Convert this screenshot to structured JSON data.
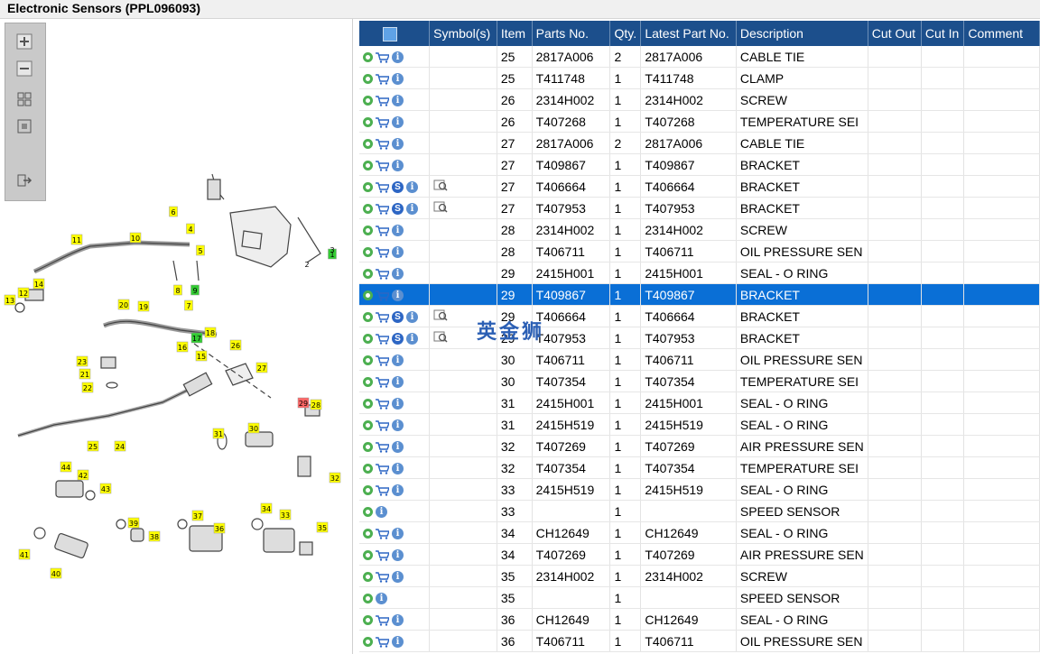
{
  "window": {
    "title": "Electronic Sensors (PPL096093)"
  },
  "watermark": "英金狮",
  "colors": {
    "header": "#1c4f8c",
    "selected_row": "#0a6fd6",
    "callout": "#ffff00",
    "callout_green": "#33cc33",
    "callout_red": "#ff6666"
  },
  "icons": {
    "zoom_in": "zoom-in-icon",
    "zoom_out": "zoom-out-icon",
    "fit": "fit-icon",
    "actual": "actual-size-icon",
    "export": "export-icon"
  },
  "callouts": [
    {
      "n": "1",
      "c": "g"
    },
    {
      "n": "2",
      "c": "n"
    },
    {
      "n": "3",
      "c": "n"
    },
    {
      "n": "4",
      "c": "y"
    },
    {
      "n": "5",
      "c": "y"
    },
    {
      "n": "6",
      "c": "y"
    },
    {
      "n": "7",
      "c": "y"
    },
    {
      "n": "8",
      "c": "y"
    },
    {
      "n": "9",
      "c": "g"
    },
    {
      "n": "10",
      "c": "y"
    },
    {
      "n": "11",
      "c": "y"
    },
    {
      "n": "12",
      "c": "y"
    },
    {
      "n": "13",
      "c": "y"
    },
    {
      "n": "14",
      "c": "y"
    },
    {
      "n": "15",
      "c": "y"
    },
    {
      "n": "16",
      "c": "y"
    },
    {
      "n": "17",
      "c": "g"
    },
    {
      "n": "18",
      "c": "y"
    },
    {
      "n": "19",
      "c": "y"
    },
    {
      "n": "20",
      "c": "y"
    },
    {
      "n": "21",
      "c": "y"
    },
    {
      "n": "22",
      "c": "y"
    },
    {
      "n": "23",
      "c": "y"
    },
    {
      "n": "24",
      "c": "y"
    },
    {
      "n": "25",
      "c": "y"
    },
    {
      "n": "26",
      "c": "y"
    },
    {
      "n": "27",
      "c": "y"
    },
    {
      "n": "28",
      "c": "y"
    },
    {
      "n": "29",
      "c": "r"
    },
    {
      "n": "30",
      "c": "y"
    },
    {
      "n": "31",
      "c": "y"
    },
    {
      "n": "32",
      "c": "y"
    },
    {
      "n": "33",
      "c": "y"
    },
    {
      "n": "34",
      "c": "y"
    },
    {
      "n": "35",
      "c": "y"
    },
    {
      "n": "36",
      "c": "y"
    },
    {
      "n": "37",
      "c": "y"
    },
    {
      "n": "38",
      "c": "y"
    },
    {
      "n": "39",
      "c": "y"
    },
    {
      "n": "40",
      "c": "y"
    },
    {
      "n": "41",
      "c": "y"
    },
    {
      "n": "42",
      "c": "y"
    },
    {
      "n": "43",
      "c": "y"
    },
    {
      "n": "44",
      "c": "y"
    }
  ],
  "grid": {
    "columns": [
      "",
      "Symbol(s)",
      "Item",
      "Parts No.",
      "Qty.",
      "Latest Part No.",
      "Description",
      "Cut Out",
      "Cut In",
      "Comment"
    ],
    "rows": [
      {
        "cart": true,
        "s": false,
        "sym": false,
        "item": "25",
        "part": "2817A006",
        "qty": "2",
        "latest": "2817A006",
        "desc": "CABLE TIE",
        "sel": false
      },
      {
        "cart": true,
        "s": false,
        "sym": false,
        "item": "25",
        "part": "T411748",
        "qty": "1",
        "latest": "T411748",
        "desc": "CLAMP",
        "sel": false
      },
      {
        "cart": true,
        "s": false,
        "sym": false,
        "item": "26",
        "part": "2314H002",
        "qty": "1",
        "latest": "2314H002",
        "desc": "SCREW",
        "sel": false
      },
      {
        "cart": true,
        "s": false,
        "sym": false,
        "item": "26",
        "part": "T407268",
        "qty": "1",
        "latest": "T407268",
        "desc": "TEMPERATURE SEI",
        "sel": false
      },
      {
        "cart": true,
        "s": false,
        "sym": false,
        "item": "27",
        "part": "2817A006",
        "qty": "2",
        "latest": "2817A006",
        "desc": "CABLE TIE",
        "sel": false
      },
      {
        "cart": true,
        "s": false,
        "sym": false,
        "item": "27",
        "part": "T409867",
        "qty": "1",
        "latest": "T409867",
        "desc": "BRACKET",
        "sel": false
      },
      {
        "cart": true,
        "s": true,
        "sym": true,
        "item": "27",
        "part": "T406664",
        "qty": "1",
        "latest": "T406664",
        "desc": "BRACKET",
        "sel": false
      },
      {
        "cart": true,
        "s": true,
        "sym": true,
        "item": "27",
        "part": "T407953",
        "qty": "1",
        "latest": "T407953",
        "desc": "BRACKET",
        "sel": false
      },
      {
        "cart": true,
        "s": false,
        "sym": false,
        "item": "28",
        "part": "2314H002",
        "qty": "1",
        "latest": "2314H002",
        "desc": "SCREW",
        "sel": false
      },
      {
        "cart": true,
        "s": false,
        "sym": false,
        "item": "28",
        "part": "T406711",
        "qty": "1",
        "latest": "T406711",
        "desc": "OIL PRESSURE SEN",
        "sel": false
      },
      {
        "cart": true,
        "s": false,
        "sym": false,
        "item": "29",
        "part": "2415H001",
        "qty": "1",
        "latest": "2415H001",
        "desc": "SEAL - O RING",
        "sel": false
      },
      {
        "cart": true,
        "s": false,
        "sym": false,
        "item": "29",
        "part": "T409867",
        "qty": "1",
        "latest": "T409867",
        "desc": "BRACKET",
        "sel": true
      },
      {
        "cart": true,
        "s": true,
        "sym": true,
        "item": "29",
        "part": "T406664",
        "qty": "1",
        "latest": "T406664",
        "desc": "BRACKET",
        "sel": false
      },
      {
        "cart": true,
        "s": true,
        "sym": true,
        "item": "29",
        "part": "T407953",
        "qty": "1",
        "latest": "T407953",
        "desc": "BRACKET",
        "sel": false
      },
      {
        "cart": true,
        "s": false,
        "sym": false,
        "item": "30",
        "part": "T406711",
        "qty": "1",
        "latest": "T406711",
        "desc": "OIL PRESSURE SEN",
        "sel": false
      },
      {
        "cart": true,
        "s": false,
        "sym": false,
        "item": "30",
        "part": "T407354",
        "qty": "1",
        "latest": "T407354",
        "desc": "TEMPERATURE SEI",
        "sel": false
      },
      {
        "cart": true,
        "s": false,
        "sym": false,
        "item": "31",
        "part": "2415H001",
        "qty": "1",
        "latest": "2415H001",
        "desc": "SEAL - O RING",
        "sel": false
      },
      {
        "cart": true,
        "s": false,
        "sym": false,
        "item": "31",
        "part": "2415H519",
        "qty": "1",
        "latest": "2415H519",
        "desc": "SEAL - O RING",
        "sel": false
      },
      {
        "cart": true,
        "s": false,
        "sym": false,
        "item": "32",
        "part": "T407269",
        "qty": "1",
        "latest": "T407269",
        "desc": "AIR PRESSURE SEN",
        "sel": false
      },
      {
        "cart": true,
        "s": false,
        "sym": false,
        "item": "32",
        "part": "T407354",
        "qty": "1",
        "latest": "T407354",
        "desc": "TEMPERATURE SEI",
        "sel": false
      },
      {
        "cart": true,
        "s": false,
        "sym": false,
        "item": "33",
        "part": "2415H519",
        "qty": "1",
        "latest": "2415H519",
        "desc": "SEAL - O RING",
        "sel": false
      },
      {
        "cart": false,
        "s": false,
        "sym": false,
        "item": "33",
        "part": "",
        "qty": "1",
        "latest": "",
        "desc": "SPEED SENSOR",
        "sel": false
      },
      {
        "cart": true,
        "s": false,
        "sym": false,
        "item": "34",
        "part": "CH12649",
        "qty": "1",
        "latest": "CH12649",
        "desc": "SEAL - O RING",
        "sel": false
      },
      {
        "cart": true,
        "s": false,
        "sym": false,
        "item": "34",
        "part": "T407269",
        "qty": "1",
        "latest": "T407269",
        "desc": "AIR PRESSURE SEN",
        "sel": false
      },
      {
        "cart": true,
        "s": false,
        "sym": false,
        "item": "35",
        "part": "2314H002",
        "qty": "1",
        "latest": "2314H002",
        "desc": "SCREW",
        "sel": false
      },
      {
        "cart": false,
        "s": false,
        "sym": false,
        "item": "35",
        "part": "",
        "qty": "1",
        "latest": "",
        "desc": "SPEED SENSOR",
        "sel": false
      },
      {
        "cart": true,
        "s": false,
        "sym": false,
        "item": "36",
        "part": "CH12649",
        "qty": "1",
        "latest": "CH12649",
        "desc": "SEAL - O RING",
        "sel": false
      },
      {
        "cart": true,
        "s": false,
        "sym": false,
        "item": "36",
        "part": "T406711",
        "qty": "1",
        "latest": "T406711",
        "desc": "OIL PRESSURE SEN",
        "sel": false
      }
    ]
  }
}
